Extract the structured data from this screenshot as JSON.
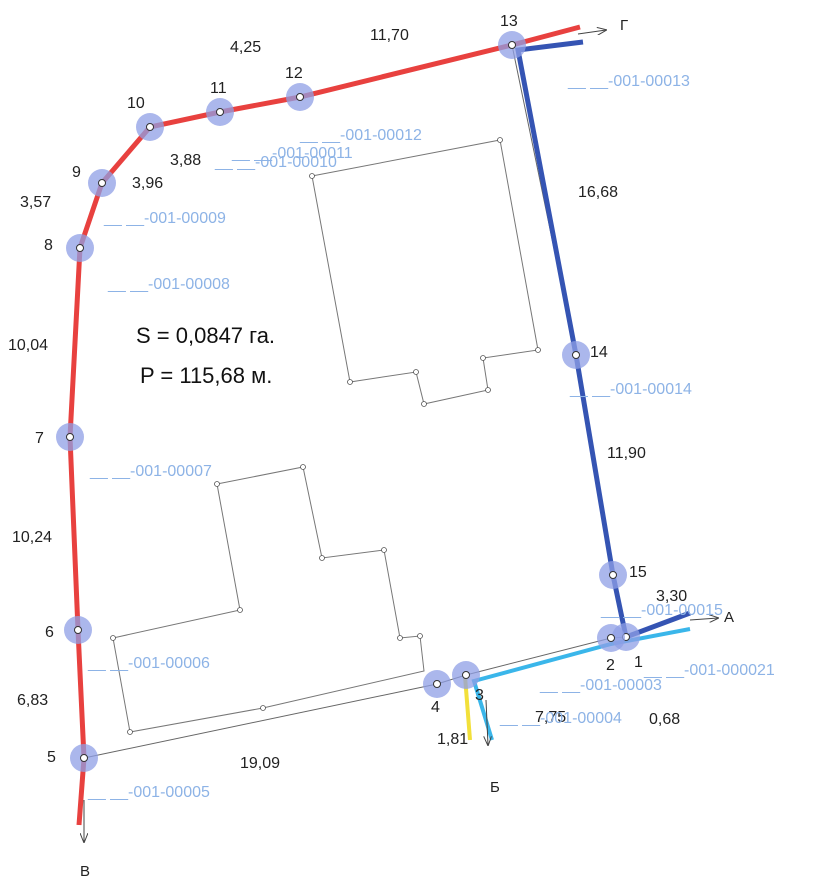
{
  "area_label": "S = 0,0847 га.",
  "perimeter_label": "P = 115,68 м.",
  "points": [
    {
      "num": "1"
    },
    {
      "num": "2"
    },
    {
      "num": "3"
    },
    {
      "num": "4"
    },
    {
      "num": "5"
    },
    {
      "num": "6"
    },
    {
      "num": "7"
    },
    {
      "num": "8"
    },
    {
      "num": "9"
    },
    {
      "num": "10"
    },
    {
      "num": "11"
    },
    {
      "num": "12"
    },
    {
      "num": "13"
    },
    {
      "num": "14"
    },
    {
      "num": "15"
    }
  ],
  "segment_lengths": [
    "4,25",
    "11,70",
    "3,88",
    "3,96",
    "3,57",
    "16,68",
    "10,04",
    "11,90",
    "10,24",
    "3,30",
    "6,83",
    "7,75",
    "0,68",
    "19,09",
    "1,81"
  ],
  "boundary_codes": [
    "__ __-001-00013",
    "__ __-001-00012",
    "__ __-001-00011",
    "__ __-001-00010",
    "__ __-001-00009",
    "__ __-001-00008",
    "__ __-001-00014",
    "__ __-001-00007",
    "__ __-001-00015",
    "__ __-001-00006",
    "__ __-001-000021",
    "__ __-001-00003",
    "__ __-001-00004",
    "__ __-001-00005"
  ],
  "directions": [
    "Г",
    "А",
    "Б",
    "В"
  ],
  "colors": {
    "red": "#e8413f",
    "blue": "#3554b3",
    "yellow": "#f2e03a",
    "cyan": "#3ab6ea",
    "label": "#8db3e6",
    "halo": "#8f9fe6"
  }
}
